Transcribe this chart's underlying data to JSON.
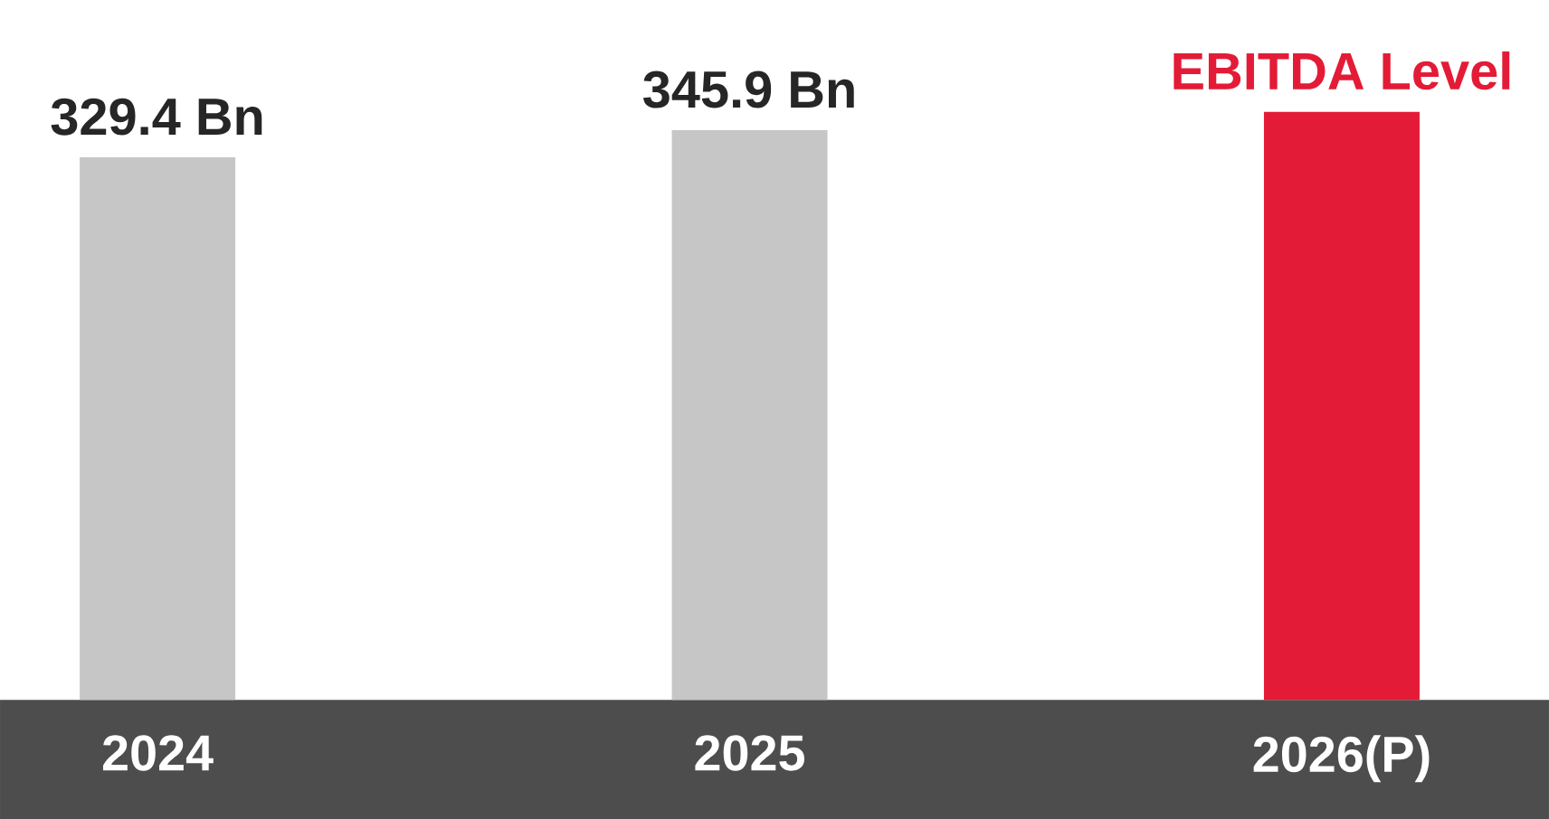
{
  "chart_data": {
    "type": "bar",
    "categories": [
      "2024",
      "2025",
      "**2026**(P)"
    ],
    "values": [
      329.4,
      345.9,
      357
    ],
    "colors": [
      "#c6c6c6",
      "#c6c6c6",
      "#e41b36"
    ],
    "value_labels": [
      "329.4 Bn",
      "345.9 Bn",
      "EBITDA Level"
    ]
  }
}
